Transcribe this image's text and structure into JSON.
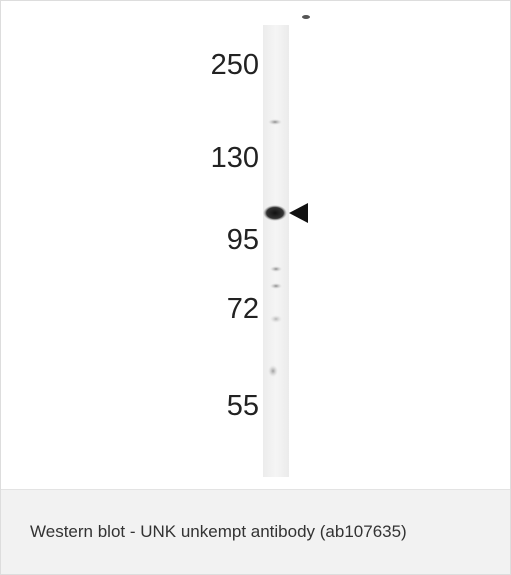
{
  "figure": {
    "markers": [
      "250",
      "130",
      "95",
      "72",
      "55"
    ],
    "caption": "Western blot - UNK unkempt antibody (ab107635)"
  }
}
